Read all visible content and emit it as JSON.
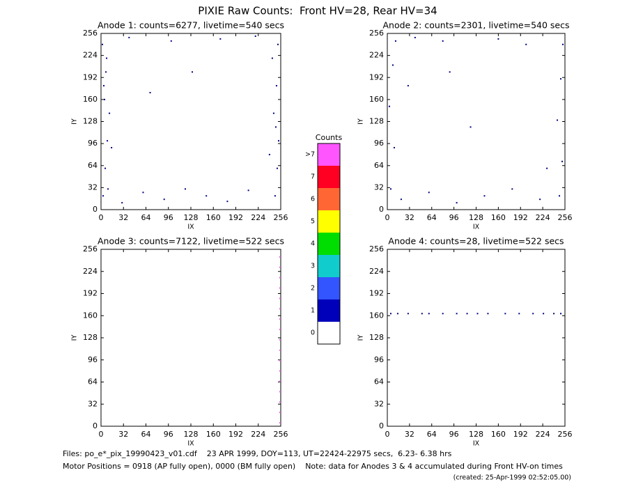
{
  "header": {
    "title": "PIXIE Raw Counts:  Front HV=28, Rear HV=34"
  },
  "chart_data": [
    {
      "type": "scatter",
      "title": "Anode 1: counts=6277, livetime=540 secs",
      "xlabel": "IX",
      "ylabel": "IY",
      "xlim": [
        0,
        256
      ],
      "ylim": [
        0,
        256
      ],
      "xticks": [
        0,
        32,
        64,
        96,
        128,
        160,
        192,
        224,
        256
      ],
      "yticks": [
        0,
        32,
        64,
        96,
        128,
        160,
        192,
        224,
        256
      ],
      "color": "#000080",
      "x": [
        3,
        6,
        9,
        12,
        4,
        8,
        2,
        10,
        5,
        7,
        248,
        251,
        253,
        246,
        250,
        244,
        252,
        249,
        30,
        60,
        90,
        120,
        150,
        180,
        210,
        40,
        100,
        170,
        220,
        15,
        240,
        130,
        70
      ],
      "y": [
        20,
        60,
        100,
        140,
        180,
        220,
        240,
        30,
        160,
        200,
        20,
        60,
        100,
        140,
        180,
        220,
        240,
        120,
        10,
        25,
        15,
        30,
        20,
        12,
        28,
        250,
        245,
        248,
        252,
        90,
        80,
        200,
        170
      ]
    },
    {
      "type": "scatter",
      "title": "Anode 2: counts=2301, livetime=540 secs",
      "xlabel": "IX",
      "ylabel": "IY",
      "xlim": [
        0,
        256
      ],
      "ylim": [
        0,
        256
      ],
      "xticks": [
        0,
        32,
        64,
        96,
        128,
        160,
        192,
        224,
        256
      ],
      "yticks": [
        0,
        32,
        64,
        96,
        128,
        160,
        192,
        224,
        256
      ],
      "color": "#000080",
      "x": [
        5,
        10,
        3,
        8,
        12,
        248,
        252,
        245,
        250,
        253,
        20,
        60,
        100,
        140,
        180,
        220,
        40,
        80,
        160,
        200,
        120,
        30,
        230,
        90
      ],
      "y": [
        30,
        90,
        150,
        210,
        245,
        20,
        70,
        130,
        190,
        240,
        15,
        25,
        10,
        20,
        30,
        15,
        250,
        245,
        248,
        240,
        120,
        180,
        60,
        200
      ]
    },
    {
      "type": "scatter",
      "title": "Anode 3: counts=7122, livetime=522 secs",
      "xlabel": "IX",
      "ylabel": "IY",
      "xlim": [
        0,
        256
      ],
      "ylim": [
        0,
        256
      ],
      "xticks": [
        0,
        32,
        64,
        96,
        128,
        160,
        192,
        224,
        256
      ],
      "yticks": [
        0,
        32,
        64,
        96,
        128,
        160,
        192,
        224,
        256
      ],
      "color": "#e060e0",
      "x": [
        255,
        255,
        255,
        255,
        255,
        255,
        255,
        255,
        255,
        255,
        255,
        255,
        255,
        255,
        255,
        255,
        255
      ],
      "y": [
        5,
        20,
        35,
        50,
        65,
        80,
        95,
        110,
        125,
        140,
        155,
        170,
        185,
        200,
        215,
        230,
        245
      ]
    },
    {
      "type": "scatter",
      "title": "Anode 4: counts=28, livetime=522 secs",
      "xlabel": "IX",
      "ylabel": "IY",
      "xlim": [
        0,
        256
      ],
      "ylim": [
        0,
        256
      ],
      "xticks": [
        0,
        32,
        64,
        96,
        128,
        160,
        192,
        224,
        256
      ],
      "yticks": [
        0,
        32,
        64,
        96,
        128,
        160,
        192,
        224,
        256
      ],
      "color": "#000080",
      "x": [
        5,
        15,
        30,
        50,
        60,
        80,
        100,
        115,
        130,
        145,
        170,
        190,
        210,
        225,
        240,
        250
      ],
      "y": [
        163,
        163,
        163,
        163,
        163,
        163,
        163,
        163,
        163,
        163,
        163,
        163,
        163,
        163,
        163,
        163
      ]
    }
  ],
  "colorbar": {
    "title": "Counts",
    "labels": [
      ">7",
      "7",
      "6",
      "5",
      "4",
      "3",
      "2",
      "1",
      "0"
    ],
    "colors": [
      "#ff55ff",
      "#ff0022",
      "#ff6633",
      "#ffff00",
      "#00dd00",
      "#11cccc",
      "#3355ff",
      "#0000bb",
      "#ffffff"
    ]
  },
  "footer": {
    "line1": "Files: po_e*_pix_19990423_v01.cdf    23 APR 1999, DOY=113, UT=22424-22975 secs,  6.23- 6.38 hrs",
    "line2": "Motor Positions = 0918 (AP fully open), 0000 (BM fully open)    Note: data for Anodes 3 & 4 accumulated during Front HV-on times",
    "created": "(created: 25-Apr-1999 02:52:05.00)"
  }
}
